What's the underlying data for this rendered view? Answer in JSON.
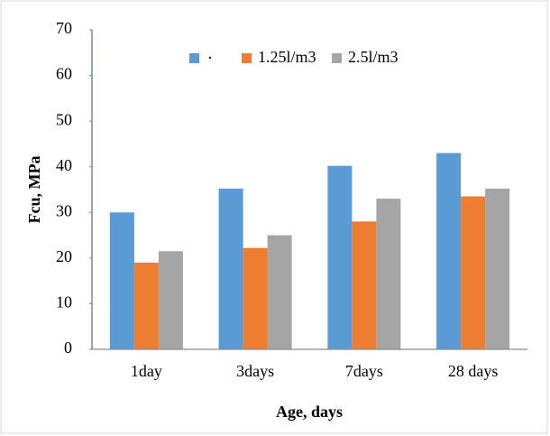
{
  "chart_data": {
    "type": "bar",
    "y_label": "Fcu, MPa",
    "x_label": "Age, days",
    "categories": [
      "1day",
      "3days",
      "7days",
      "28 days"
    ],
    "series": [
      {
        "name": "٠",
        "color": "#5b9bd5",
        "values": [
          30,
          35.2,
          40.2,
          43
        ]
      },
      {
        "name": "1.25l/m3",
        "color": "#ed7d31",
        "values": [
          19,
          22.2,
          28,
          33.5
        ]
      },
      {
        "name": "2.5l/m3",
        "color": "#a5a5a5",
        "values": [
          21.5,
          25,
          33,
          35.2
        ]
      }
    ],
    "ylim": [
      0,
      70
    ],
    "yticks": [
      0,
      10,
      20,
      30,
      40,
      50,
      60,
      70
    ],
    "grid": false,
    "legend": "top"
  }
}
